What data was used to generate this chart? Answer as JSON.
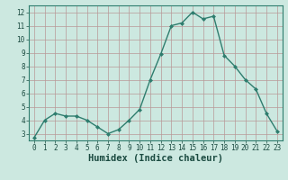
{
  "x": [
    0,
    1,
    2,
    3,
    4,
    5,
    6,
    7,
    8,
    9,
    10,
    11,
    12,
    13,
    14,
    15,
    16,
    17,
    18,
    19,
    20,
    21,
    22,
    23
  ],
  "y": [
    2.7,
    4.0,
    4.5,
    4.3,
    4.3,
    4.0,
    3.5,
    3.0,
    3.3,
    4.0,
    4.8,
    7.0,
    8.9,
    11.0,
    11.2,
    12.0,
    11.5,
    11.7,
    8.8,
    8.0,
    7.0,
    6.3,
    4.5,
    3.2
  ],
  "line_color": "#2e7d6e",
  "marker": "D",
  "marker_size": 2.0,
  "linewidth": 1.0,
  "xlabel": "Humidex (Indice chaleur)",
  "xlabel_fontsize": 7.5,
  "ylim": [
    2.5,
    12.5
  ],
  "xlim": [
    -0.5,
    23.5
  ],
  "yticks": [
    3,
    4,
    5,
    6,
    7,
    8,
    9,
    10,
    11,
    12
  ],
  "xticks": [
    0,
    1,
    2,
    3,
    4,
    5,
    6,
    7,
    8,
    9,
    10,
    11,
    12,
    13,
    14,
    15,
    16,
    17,
    18,
    19,
    20,
    21,
    22,
    23
  ],
  "bg_color": "#cce8e0",
  "grid_color": "#b89898",
  "spine_color": "#2e7d6e",
  "tick_color": "#1a4a40",
  "label_color": "#1a4a40",
  "tick_fontsize": 5.5,
  "xlabel_bold": true
}
